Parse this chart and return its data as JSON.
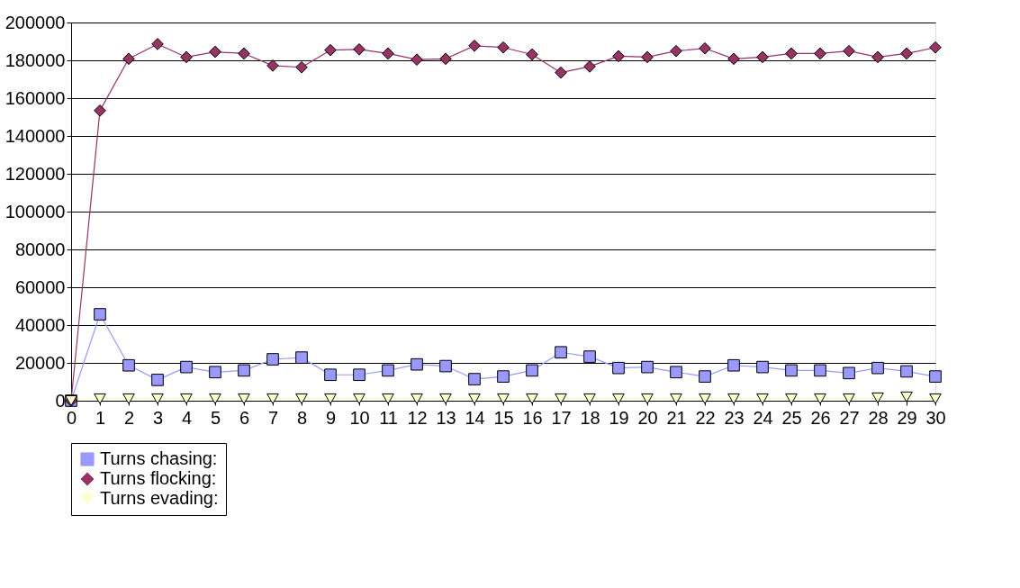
{
  "chart_data": {
    "type": "line",
    "x": [
      0,
      1,
      2,
      3,
      4,
      5,
      6,
      7,
      8,
      9,
      10,
      11,
      12,
      13,
      14,
      15,
      16,
      17,
      18,
      19,
      20,
      21,
      22,
      23,
      24,
      25,
      26,
      27,
      28,
      29,
      30
    ],
    "xlim": [
      0,
      30
    ],
    "xticks": [
      0,
      1,
      2,
      3,
      4,
      5,
      6,
      7,
      8,
      9,
      10,
      11,
      12,
      13,
      14,
      15,
      16,
      17,
      18,
      19,
      20,
      21,
      22,
      23,
      24,
      25,
      26,
      27,
      28,
      29,
      30
    ],
    "ylim": [
      0,
      200000
    ],
    "yticks": [
      0,
      20000,
      40000,
      60000,
      80000,
      100000,
      120000,
      140000,
      160000,
      180000,
      200000
    ],
    "grid": "y",
    "legend": "bottom",
    "series": [
      {
        "name": "Turns chasing:",
        "color": "#9999ff",
        "marker": "square",
        "values": [
          0,
          45700,
          18700,
          11000,
          17800,
          15100,
          16000,
          21900,
          22800,
          13700,
          13700,
          16000,
          19200,
          18300,
          11400,
          12800,
          16000,
          25600,
          23300,
          17300,
          17800,
          15100,
          12800,
          18700,
          17800,
          16000,
          16000,
          14600,
          17300,
          15500,
          12800
        ]
      },
      {
        "name": "Turns flocking:",
        "color": "#993366",
        "marker": "diamond",
        "values": [
          0,
          153400,
          180800,
          188600,
          181700,
          184500,
          183600,
          177200,
          176300,
          185400,
          185800,
          183600,
          180400,
          180800,
          187700,
          186800,
          183100,
          173500,
          176700,
          182200,
          181700,
          184900,
          186300,
          180800,
          181700,
          183600,
          183600,
          184900,
          181700,
          183600,
          186800
        ]
      },
      {
        "name": "Turns evading:",
        "color": "#ffffcc",
        "marker": "triangle",
        "values": [
          0,
          1000,
          1000,
          1000,
          1000,
          1000,
          1000,
          1000,
          1000,
          1000,
          1000,
          1000,
          1000,
          1000,
          1000,
          1000,
          1000,
          1000,
          1000,
          1000,
          1000,
          1000,
          1000,
          1000,
          1000,
          1000,
          1000,
          1000,
          1500,
          2000,
          1000
        ]
      }
    ]
  }
}
